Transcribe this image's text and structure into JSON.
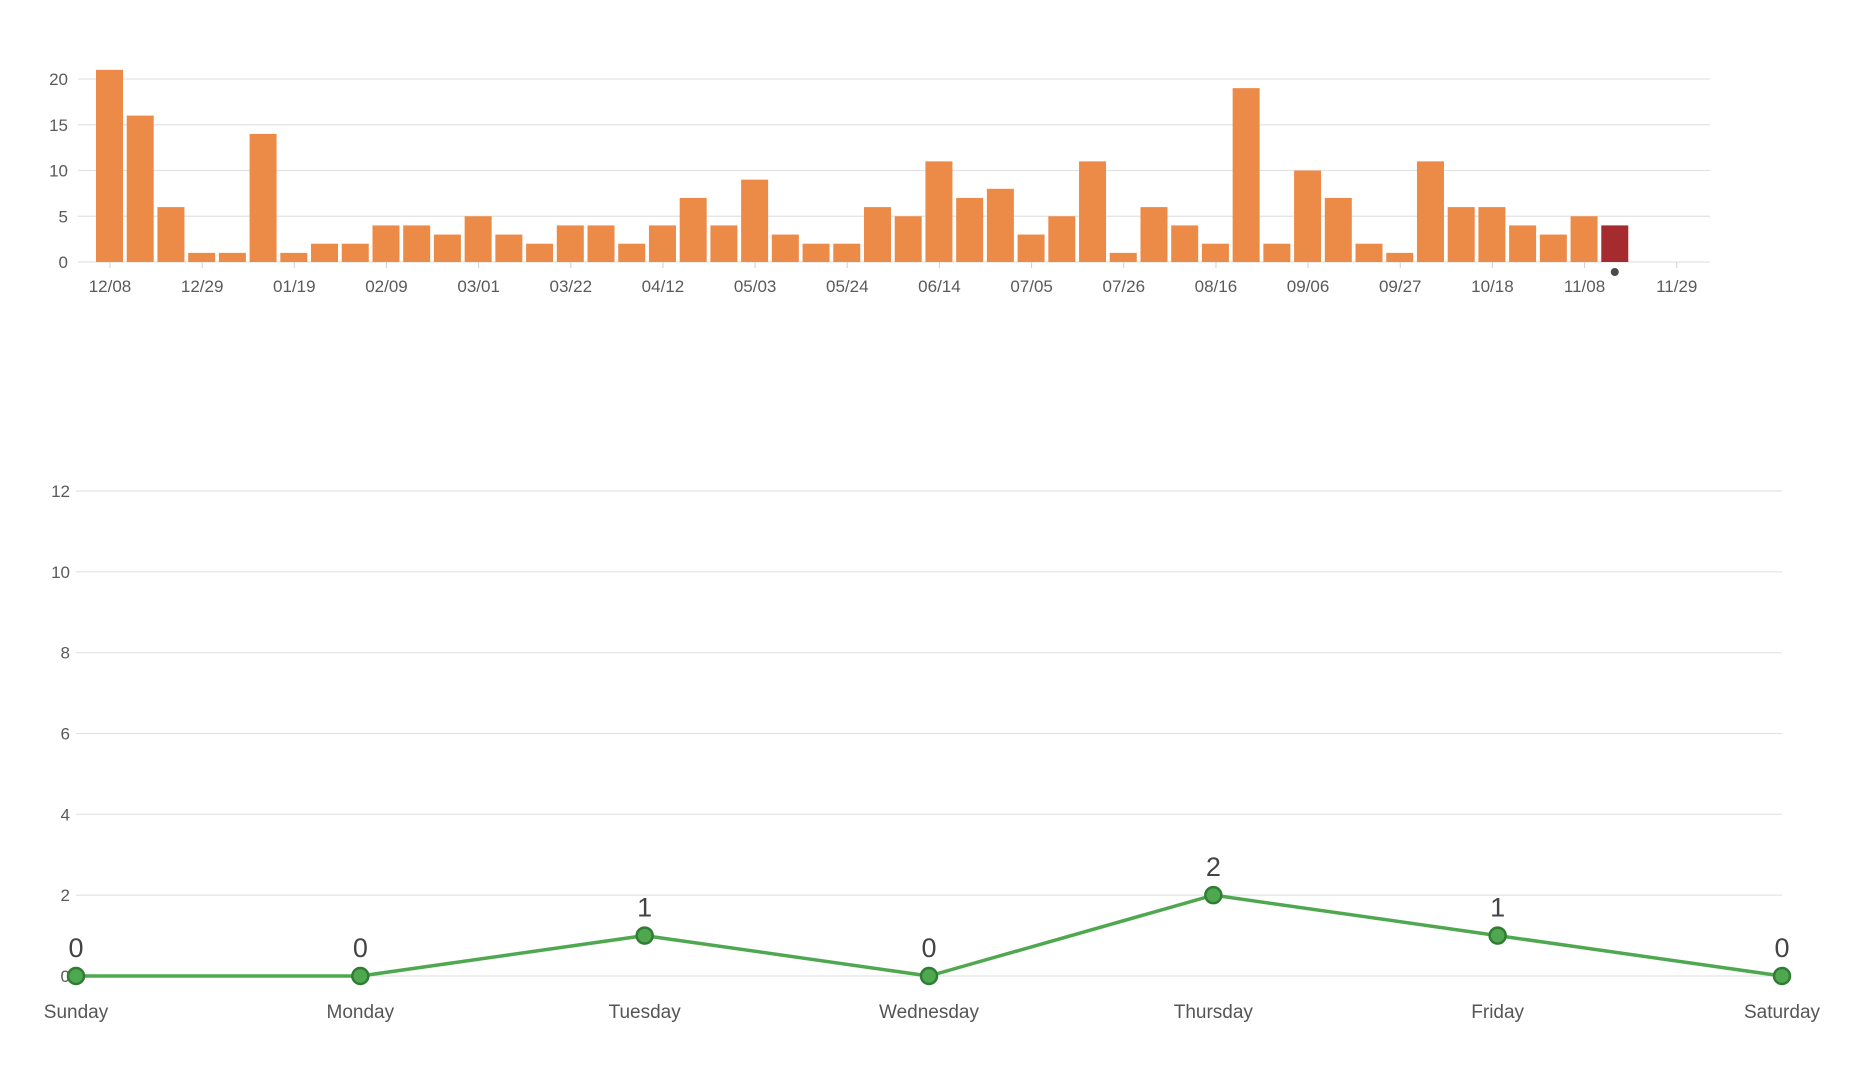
{
  "chart_data": [
    {
      "type": "bar",
      "title": "",
      "xlabel": "",
      "ylabel": "",
      "ylim": [
        0,
        20
      ],
      "yticks": [
        "0",
        "5",
        "10",
        "15",
        "20"
      ],
      "xtick_labels": [
        "12/08",
        "12/29",
        "01/19",
        "02/09",
        "03/01",
        "03/22",
        "04/12",
        "05/03",
        "05/24",
        "06/14",
        "07/05",
        "07/26",
        "08/16",
        "09/06",
        "09/27",
        "10/18",
        "11/08",
        "11/29"
      ],
      "values": [
        21,
        16,
        6,
        1,
        1,
        14,
        1,
        2,
        2,
        4,
        4,
        3,
        5,
        3,
        2,
        4,
        4,
        2,
        4,
        7,
        4,
        9,
        3,
        2,
        2,
        6,
        5,
        11,
        7,
        8,
        3,
        5,
        11,
        1,
        6,
        4,
        2,
        19,
        2,
        10,
        7,
        2,
        1,
        11,
        6,
        6,
        4,
        3,
        5,
        4
      ],
      "highlight_index": 49,
      "colors": {
        "bar": "#ec8b48",
        "highlight": "#a52b2e",
        "marker": "#4a4a4a"
      }
    },
    {
      "type": "line",
      "title": "",
      "xlabel": "",
      "ylabel": "",
      "ylim": [
        0,
        12
      ],
      "yticks": [
        "0",
        "2",
        "4",
        "6",
        "8",
        "10",
        "12"
      ],
      "categories": [
        "Sunday",
        "Monday",
        "Tuesday",
        "Wednesday",
        "Thursday",
        "Friday",
        "Saturday"
      ],
      "values": [
        0,
        0,
        1,
        0,
        2,
        1,
        0
      ],
      "value_labels": [
        "0",
        "0",
        "1",
        "0",
        "2",
        "1",
        "0"
      ],
      "colors": {
        "line": "#4fa850",
        "point_fill": "#4fa850",
        "point_stroke": "#2e7d32"
      }
    }
  ]
}
